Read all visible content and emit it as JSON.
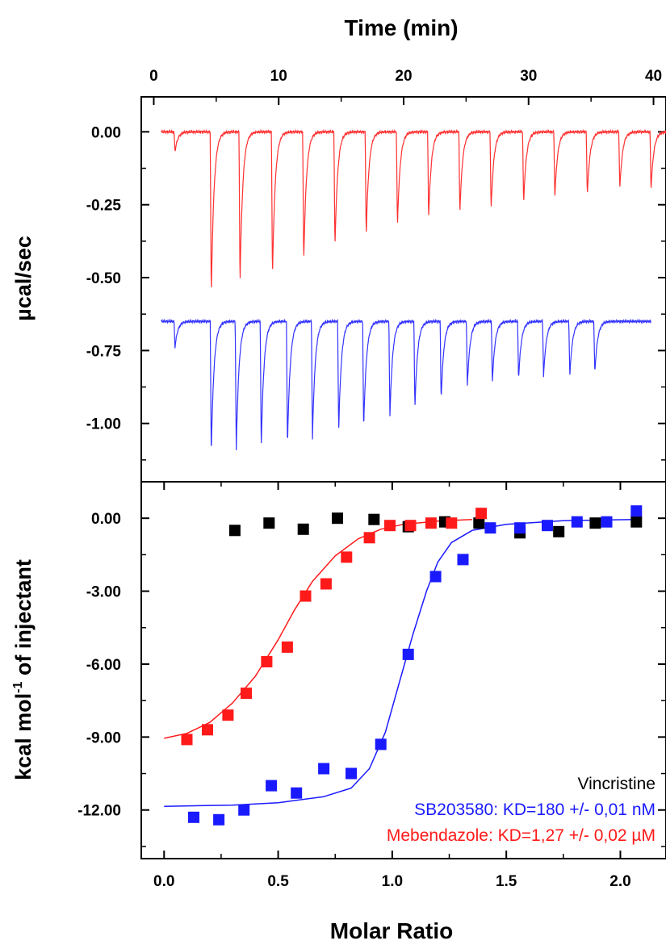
{
  "chart_data": [
    {
      "type": "line",
      "panel": "thermogram",
      "xlabel": "Time (min)",
      "ylabel": "µcal/sec",
      "xlim": [
        -1,
        41
      ],
      "ylim": [
        -1.2,
        0.12
      ],
      "xticks": [
        0,
        10,
        20,
        30,
        40
      ],
      "xtick_labels": [
        "0",
        "10",
        "20",
        "30",
        "40"
      ],
      "yticks": [
        0,
        -0.25,
        -0.5,
        -0.75,
        -1.0
      ],
      "ytick_labels": [
        "0.00",
        "-0.25",
        "-0.50",
        "-0.75",
        "-1.00"
      ],
      "xaxis_position": "top",
      "series": [
        {
          "color": "#ff3030",
          "baseline": 0,
          "injection_times": [
            1.7,
            4.6,
            6.9,
            9.5,
            12.0,
            14.5,
            17.0,
            19.5,
            22.0,
            24.5,
            27.0,
            29.6,
            32.1,
            34.7,
            37.3,
            39.8
          ],
          "peak_values": [
            -0.07,
            -0.57,
            -0.53,
            -0.5,
            -0.45,
            -0.4,
            -0.36,
            -0.33,
            -0.3,
            -0.28,
            -0.27,
            -0.25,
            -0.23,
            -0.22,
            -0.2,
            -0.2
          ]
        },
        {
          "color": "#3333ff",
          "baseline": -0.65,
          "end_time": 39.8,
          "injection_times": [
            1.7,
            4.6,
            6.6,
            8.6,
            10.7,
            12.7,
            14.8,
            16.8,
            18.9,
            20.9,
            23.0,
            25.1,
            27.1,
            29.2,
            31.2,
            33.3,
            35.3
          ],
          "peak_values": [
            -0.74,
            -1.11,
            -1.1,
            -1.09,
            -1.08,
            -1.06,
            -1.03,
            -1.02,
            -0.98,
            -0.95,
            -0.92,
            -0.87,
            -0.86,
            -0.85,
            -0.84,
            -0.84,
            -0.83
          ]
        }
      ]
    },
    {
      "type": "scatter",
      "panel": "binding-isotherm",
      "xlabel": "Molar Ratio",
      "ylabel": "kcal mol",
      "ylabel_sup": "-1",
      "ylabel_rest": " of injectant",
      "xlim": [
        -0.1,
        2.2
      ],
      "ylim": [
        -14.0,
        1.5
      ],
      "xticks": [
        0,
        0.5,
        1.0,
        1.5,
        2.0
      ],
      "xtick_labels": [
        "0.0",
        "0.5",
        "1.0",
        "1.5",
        "2.0"
      ],
      "yticks": [
        0,
        -3,
        -6,
        -9,
        -12
      ],
      "ytick_labels": [
        "0.00",
        "-3.00",
        "-6.00",
        "-9.00",
        "-12.00"
      ],
      "series": [
        {
          "name": "Vincristine",
          "color": "#000000",
          "x": [
            0.31,
            0.46,
            0.61,
            0.76,
            0.92,
            1.07,
            1.23,
            1.38,
            1.56,
            1.73,
            1.89,
            2.07
          ],
          "y": [
            -0.5,
            -0.2,
            -0.45,
            0.0,
            -0.05,
            -0.35,
            -0.15,
            -0.2,
            -0.6,
            -0.55,
            -0.2,
            -0.15
          ]
        },
        {
          "name": "SB203580: KD=180 +/- 0,01 nM",
          "color": "#1a1aff",
          "x": [
            0.13,
            0.24,
            0.35,
            0.47,
            0.58,
            0.7,
            0.82,
            0.95,
            1.07,
            1.19,
            1.31,
            1.43,
            1.56,
            1.68,
            1.81,
            1.94,
            2.07
          ],
          "y": [
            -12.3,
            -12.4,
            -12.0,
            -11.0,
            -11.3,
            -10.3,
            -10.5,
            -9.3,
            -5.6,
            -2.4,
            -1.7,
            -0.4,
            -0.4,
            -0.3,
            -0.15,
            -0.15,
            0.3
          ],
          "fit": [
            [
              0.0,
              -11.85
            ],
            [
              0.3,
              -11.8
            ],
            [
              0.5,
              -11.7
            ],
            [
              0.7,
              -11.45
            ],
            [
              0.82,
              -11.1
            ],
            [
              0.9,
              -10.3
            ],
            [
              0.97,
              -8.8
            ],
            [
              1.03,
              -6.8
            ],
            [
              1.09,
              -4.8
            ],
            [
              1.15,
              -3.0
            ],
            [
              1.2,
              -1.8
            ],
            [
              1.26,
              -1.0
            ],
            [
              1.35,
              -0.5
            ],
            [
              1.5,
              -0.25
            ],
            [
              1.75,
              -0.1
            ],
            [
              2.07,
              -0.05
            ]
          ]
        },
        {
          "name": "Mebendazole: KD=1,27 +/- 0,02 µM",
          "color": "#ff1a1a",
          "x": [
            0.1,
            0.19,
            0.28,
            0.36,
            0.45,
            0.54,
            0.62,
            0.71,
            0.8,
            0.9,
            0.99,
            1.08,
            1.17,
            1.26,
            1.39
          ],
          "y": [
            -9.1,
            -8.7,
            -8.1,
            -7.2,
            -5.9,
            -5.3,
            -3.2,
            -2.7,
            -1.6,
            -0.8,
            -0.3,
            -0.3,
            -0.2,
            -0.2,
            0.2
          ],
          "fit": [
            [
              0.0,
              -9.05
            ],
            [
              0.1,
              -8.85
            ],
            [
              0.2,
              -8.4
            ],
            [
              0.3,
              -7.6
            ],
            [
              0.4,
              -6.5
            ],
            [
              0.5,
              -5.0
            ],
            [
              0.57,
              -3.8
            ],
            [
              0.65,
              -2.6
            ],
            [
              0.75,
              -1.55
            ],
            [
              0.85,
              -0.85
            ],
            [
              0.95,
              -0.45
            ],
            [
              1.05,
              -0.25
            ],
            [
              1.2,
              -0.12
            ],
            [
              1.35,
              -0.05
            ]
          ]
        }
      ]
    }
  ]
}
